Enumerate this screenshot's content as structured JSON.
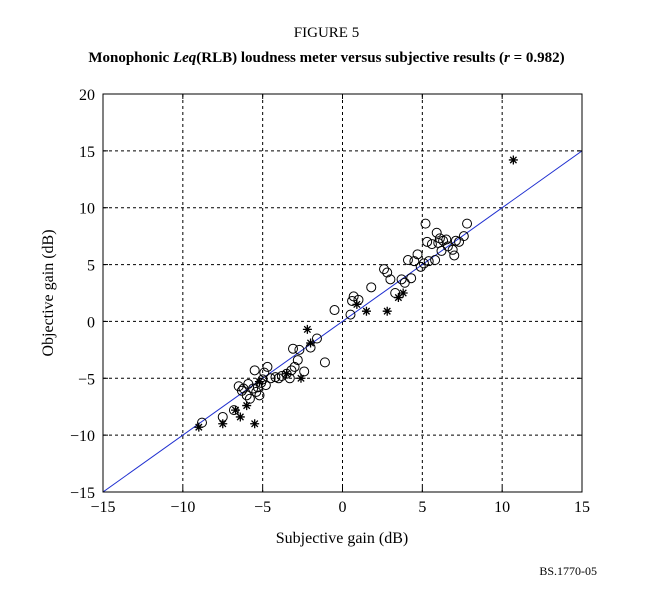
{
  "figure": {
    "label": "FIGURE 5",
    "title_prefix": "Monophonic ",
    "title_italic_1": "Leq",
    "title_mid": "(RLB) loudness meter versus subjective results (",
    "title_italic_2": "r",
    "title_suffix": " = 0.982)",
    "ref": "BS.1770-05"
  },
  "chart_data": {
    "type": "scatter",
    "xlabel": "Subjective gain (dB)",
    "ylabel": "Objective gain (dB)",
    "xlim": [
      -15,
      15
    ],
    "ylim": [
      -15,
      20
    ],
    "xticks": [
      -15,
      -10,
      -5,
      0,
      5,
      10,
      15
    ],
    "yticks": [
      -15,
      -10,
      -5,
      0,
      5,
      10,
      15,
      20
    ],
    "xtick_labels": [
      "−15",
      "−10",
      "−5",
      "0",
      "5",
      "10",
      "15"
    ],
    "ytick_labels": [
      "−15",
      "−10",
      "−5",
      "0",
      "5",
      "10",
      "15",
      "20"
    ],
    "grid": true,
    "grid_style": "dotted",
    "line_color": "#1f2fd0",
    "fit_line": {
      "x": [
        -15,
        15
      ],
      "y": [
        -15,
        15
      ]
    },
    "series": [
      {
        "marker": "circle",
        "points": [
          [
            -8.8,
            -8.9
          ],
          [
            -7.5,
            -8.4
          ],
          [
            -6.8,
            -7.8
          ],
          [
            -6.5,
            -5.7
          ],
          [
            -6.3,
            -6.1
          ],
          [
            -6.2,
            -5.9
          ],
          [
            -6.0,
            -6.5
          ],
          [
            -5.9,
            -5.5
          ],
          [
            -5.8,
            -6.8
          ],
          [
            -5.6,
            -5.9
          ],
          [
            -5.5,
            -4.3
          ],
          [
            -5.4,
            -6.2
          ],
          [
            -5.3,
            -5.8
          ],
          [
            -5.2,
            -6.5
          ],
          [
            -5.1,
            -5.4
          ],
          [
            -5.0,
            -5.1
          ],
          [
            -4.9,
            -4.5
          ],
          [
            -4.8,
            -5.6
          ],
          [
            -4.7,
            -4.0
          ],
          [
            -4.5,
            -5.0
          ],
          [
            -4.2,
            -4.9
          ],
          [
            -4.0,
            -5.0
          ],
          [
            -3.8,
            -4.8
          ],
          [
            -3.5,
            -4.6
          ],
          [
            -3.3,
            -5.0
          ],
          [
            -3.2,
            -4.3
          ],
          [
            -3.1,
            -2.4
          ],
          [
            -3.0,
            -4.0
          ],
          [
            -2.8,
            -3.4
          ],
          [
            -2.7,
            -2.5
          ],
          [
            -2.4,
            -4.4
          ],
          [
            -2.0,
            -2.3
          ],
          [
            -1.6,
            -1.5
          ],
          [
            -1.1,
            -3.6
          ],
          [
            -0.5,
            1.0
          ],
          [
            0.5,
            0.6
          ],
          [
            0.6,
            1.8
          ],
          [
            0.7,
            2.2
          ],
          [
            1.0,
            1.9
          ],
          [
            1.8,
            3.0
          ],
          [
            2.6,
            4.6
          ],
          [
            2.8,
            4.3
          ],
          [
            3.0,
            3.7
          ],
          [
            3.3,
            2.5
          ],
          [
            3.7,
            3.7
          ],
          [
            3.9,
            3.4
          ],
          [
            4.1,
            5.4
          ],
          [
            4.3,
            3.8
          ],
          [
            4.5,
            5.3
          ],
          [
            4.7,
            5.9
          ],
          [
            4.9,
            4.8
          ],
          [
            5.1,
            5.1
          ],
          [
            5.2,
            8.6
          ],
          [
            5.3,
            7.0
          ],
          [
            5.4,
            5.3
          ],
          [
            5.6,
            6.8
          ],
          [
            5.8,
            5.4
          ],
          [
            5.9,
            7.8
          ],
          [
            6.0,
            6.9
          ],
          [
            6.1,
            7.3
          ],
          [
            6.2,
            6.2
          ],
          [
            6.3,
            7.1
          ],
          [
            6.5,
            7.2
          ],
          [
            6.6,
            6.6
          ],
          [
            6.9,
            6.3
          ],
          [
            7.0,
            5.8
          ],
          [
            7.1,
            7.1
          ],
          [
            7.3,
            7.0
          ],
          [
            7.6,
            7.5
          ],
          [
            7.8,
            8.6
          ]
        ]
      },
      {
        "marker": "star",
        "points": [
          [
            -9.0,
            -9.3
          ],
          [
            -7.5,
            -9.0
          ],
          [
            -6.7,
            -7.8
          ],
          [
            -6.4,
            -8.4
          ],
          [
            -6.0,
            -7.4
          ],
          [
            -5.5,
            -9.0
          ],
          [
            -5.2,
            -5.3
          ],
          [
            -3.5,
            -4.6
          ],
          [
            -2.6,
            -5.0
          ],
          [
            -2.2,
            -0.7
          ],
          [
            -2.0,
            -1.9
          ],
          [
            0.9,
            1.5
          ],
          [
            1.5,
            0.9
          ],
          [
            2.8,
            0.9
          ],
          [
            3.5,
            2.1
          ],
          [
            3.8,
            2.5
          ],
          [
            10.7,
            14.2
          ]
        ]
      }
    ]
  }
}
